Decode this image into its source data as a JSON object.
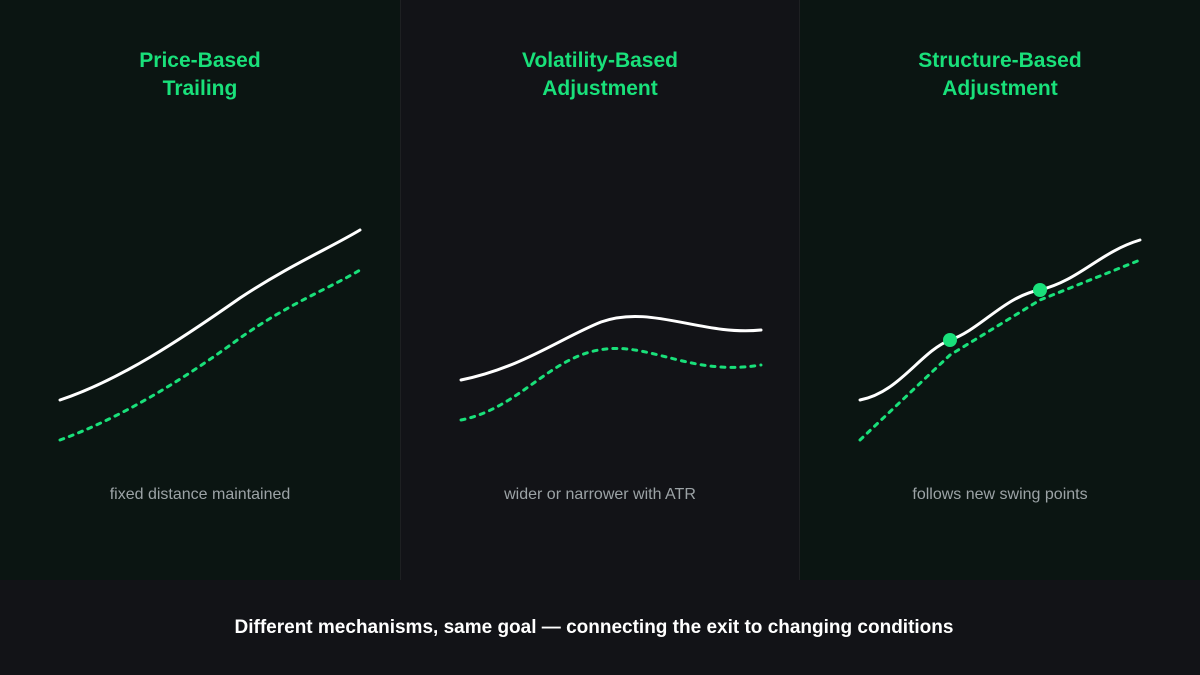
{
  "colors": {
    "accent": "#19e07a",
    "price_line": "#ffffff",
    "caption": "#9ca3a6"
  },
  "panels": [
    {
      "title_line1": "Price-Based",
      "title_line2": "Trailing",
      "caption": "fixed distance maintained"
    },
    {
      "title_line1": "Volatility-Based",
      "title_line2": "Adjustment",
      "caption": "wider or narrower with ATR"
    },
    {
      "title_line1": "Structure-Based",
      "title_line2": "Adjustment",
      "caption": "follows new swing points"
    }
  ],
  "footer": {
    "text": "Different mechanisms, same goal — connecting the exit to changing conditions"
  }
}
